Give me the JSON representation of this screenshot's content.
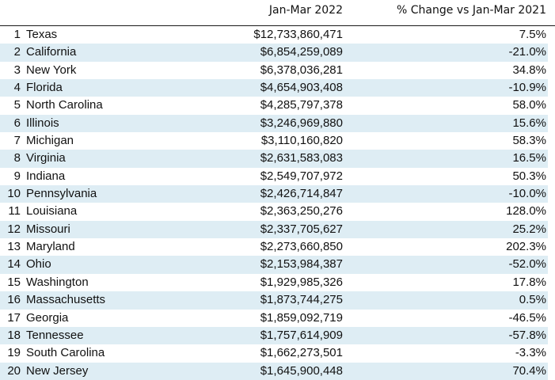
{
  "table": {
    "headers": [
      "Jan-Mar 2022",
      "% Change vs Jan-Mar 2021"
    ],
    "rows": [
      {
        "rank": "1",
        "state": "Texas",
        "value": "$12,733,860,471",
        "change": "7.5%"
      },
      {
        "rank": "2",
        "state": "California",
        "value": "$6,854,259,089",
        "change": "-21.0%"
      },
      {
        "rank": "3",
        "state": "New York",
        "value": "$6,378,036,281",
        "change": "34.8%"
      },
      {
        "rank": "4",
        "state": "Florida",
        "value": "$4,654,903,408",
        "change": "-10.9%"
      },
      {
        "rank": "5",
        "state": "North Carolina",
        "value": "$4,285,797,378",
        "change": "58.0%"
      },
      {
        "rank": "6",
        "state": "Illinois",
        "value": "$3,246,969,880",
        "change": "15.6%"
      },
      {
        "rank": "7",
        "state": "Michigan",
        "value": "$3,110,160,820",
        "change": "58.3%"
      },
      {
        "rank": "8",
        "state": "Virginia",
        "value": "$2,631,583,083",
        "change": "16.5%"
      },
      {
        "rank": "9",
        "state": "Indiana",
        "value": "$2,549,707,972",
        "change": "50.3%"
      },
      {
        "rank": "10",
        "state": "Pennsylvania",
        "value": "$2,426,714,847",
        "change": "-10.0%"
      },
      {
        "rank": "11",
        "state": "Louisiana",
        "value": "$2,363,250,276",
        "change": "128.0%"
      },
      {
        "rank": "12",
        "state": "Missouri",
        "value": "$2,337,705,627",
        "change": "25.2%"
      },
      {
        "rank": "13",
        "state": "Maryland",
        "value": "$2,273,660,850",
        "change": "202.3%"
      },
      {
        "rank": "14",
        "state": "Ohio",
        "value": "$2,153,984,387",
        "change": "-52.0%"
      },
      {
        "rank": "15",
        "state": "Washington",
        "value": "$1,929,985,326",
        "change": "17.8%"
      },
      {
        "rank": "16",
        "state": "Massachusetts",
        "value": "$1,873,744,275",
        "change": "0.5%"
      },
      {
        "rank": "17",
        "state": "Georgia",
        "value": "$1,859,092,719",
        "change": "-46.5%"
      },
      {
        "rank": "18",
        "state": "Tennessee",
        "value": "$1,757,614,909",
        "change": "-57.8%"
      },
      {
        "rank": "19",
        "state": "South Carolina",
        "value": "$1,662,273,501",
        "change": "-3.3%"
      },
      {
        "rank": "20",
        "state": "New Jersey",
        "value": "$1,645,900,448",
        "change": "70.4%"
      }
    ]
  },
  "colors": {
    "stripe": "#deedf4",
    "text": "#111111"
  }
}
